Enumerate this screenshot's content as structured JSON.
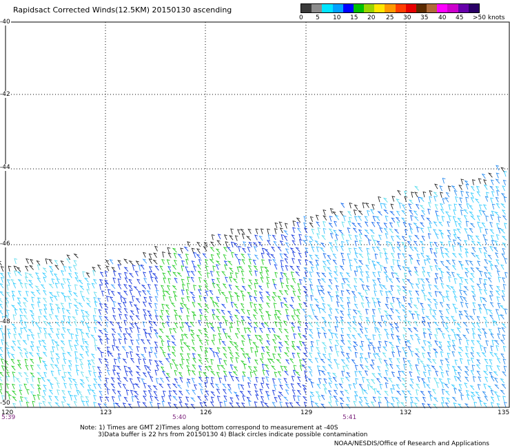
{
  "title": "Rapidsact Corrected Winds(12.5KM) 20150130 ascending",
  "legend": {
    "colors": [
      "#3a3a3a",
      "#8c8c8c",
      "#00e5ff",
      "#00a0ff",
      "#0000ff",
      "#00c000",
      "#9ad400",
      "#ffe600",
      "#ff9900",
      "#ff3d00",
      "#e60000",
      "#5a2a00",
      "#b06a3a",
      "#ff00ff",
      "#cc00cc",
      "#6600aa",
      "#2a0066"
    ],
    "labels": [
      "0",
      "5",
      "10",
      "15",
      "20",
      "25",
      "30",
      "35",
      "40",
      "45",
      ">50 knots"
    ]
  },
  "axes": {
    "lat_labels": [
      "-40",
      "-42",
      "-44",
      "-46",
      "-48",
      "-50"
    ],
    "lon_labels": [
      "120",
      "123",
      "126",
      "129",
      "132",
      "135"
    ]
  },
  "times": [
    "5:39",
    "5:40",
    "5:41"
  ],
  "notes": {
    "line1": "Note: 1) Times are GMT 2)Times along bottom correspond to measurement at -40S",
    "line2": "3)Data buffer is 22 hrs from 20150130 4) Black circles indicate possible contamination"
  },
  "credit": "NOAA/NESDIS/Office of Research and Applications"
}
